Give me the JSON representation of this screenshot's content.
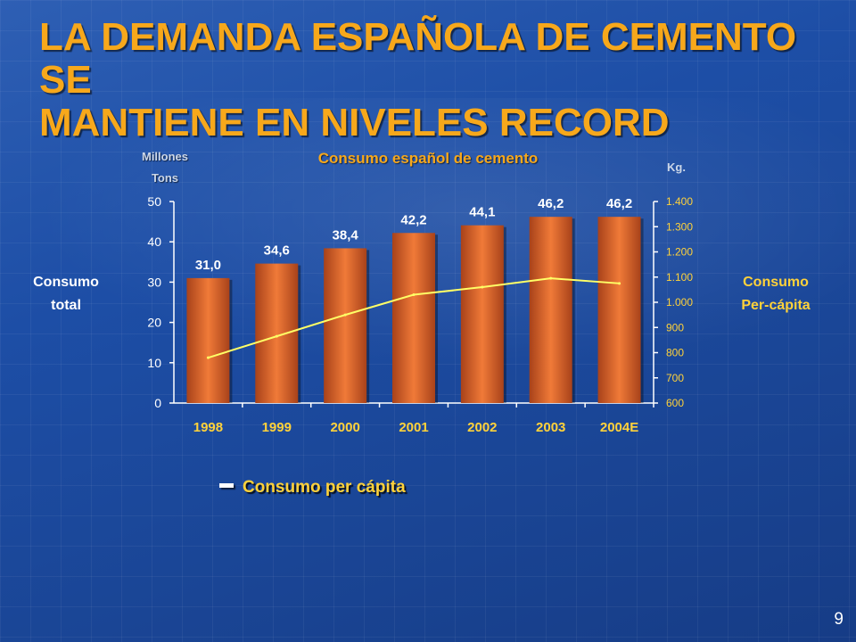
{
  "slide": {
    "title_line1": "LA DEMANDA ESPAÑOLA DE CEMENTO SE",
    "title_line2": "MANTIENE EN NIVELES RECORD",
    "page_number": "9"
  },
  "colors": {
    "title": "#f7a81b",
    "bar": "#e26b2c",
    "line": "#ffff66",
    "accent_yellow": "#ffd23a"
  },
  "chart_data": {
    "type": "bar",
    "title": "Consumo español de cemento",
    "categories": [
      "1998",
      "1999",
      "2000",
      "2001",
      "2002",
      "2003",
      "2004E"
    ],
    "series": [
      {
        "name": "Consumo total",
        "axis": "left",
        "values": [
          31.0,
          34.6,
          38.4,
          42.2,
          44.1,
          46.2,
          46.2
        ],
        "labels": [
          "31,0",
          "34,6",
          "38,4",
          "42,2",
          "44,1",
          "46,2",
          "46,2"
        ]
      },
      {
        "name": "Consumo per cápita",
        "axis": "right",
        "type": "line",
        "values": [
          780,
          865,
          950,
          1030,
          1060,
          1095,
          1075
        ]
      }
    ],
    "left_axis": {
      "unit_line1": "Millones",
      "unit_line2": "Tons",
      "title_line1": "Consumo",
      "title_line2": "total",
      "ylim": [
        0,
        50
      ],
      "ticks": [
        "0",
        "10",
        "20",
        "30",
        "40",
        "50"
      ]
    },
    "right_axis": {
      "unit": "Kg.",
      "title_line1": "Consumo",
      "title_line2": "Per-cápita",
      "ylim": [
        600,
        1400
      ],
      "ticks": [
        "600",
        "700",
        "800",
        "900",
        "1.000",
        "1.100",
        "1.200",
        "1.300",
        "1.400"
      ]
    },
    "legend": {
      "label": "Consumo per cápita",
      "position": "bottom-left"
    }
  }
}
